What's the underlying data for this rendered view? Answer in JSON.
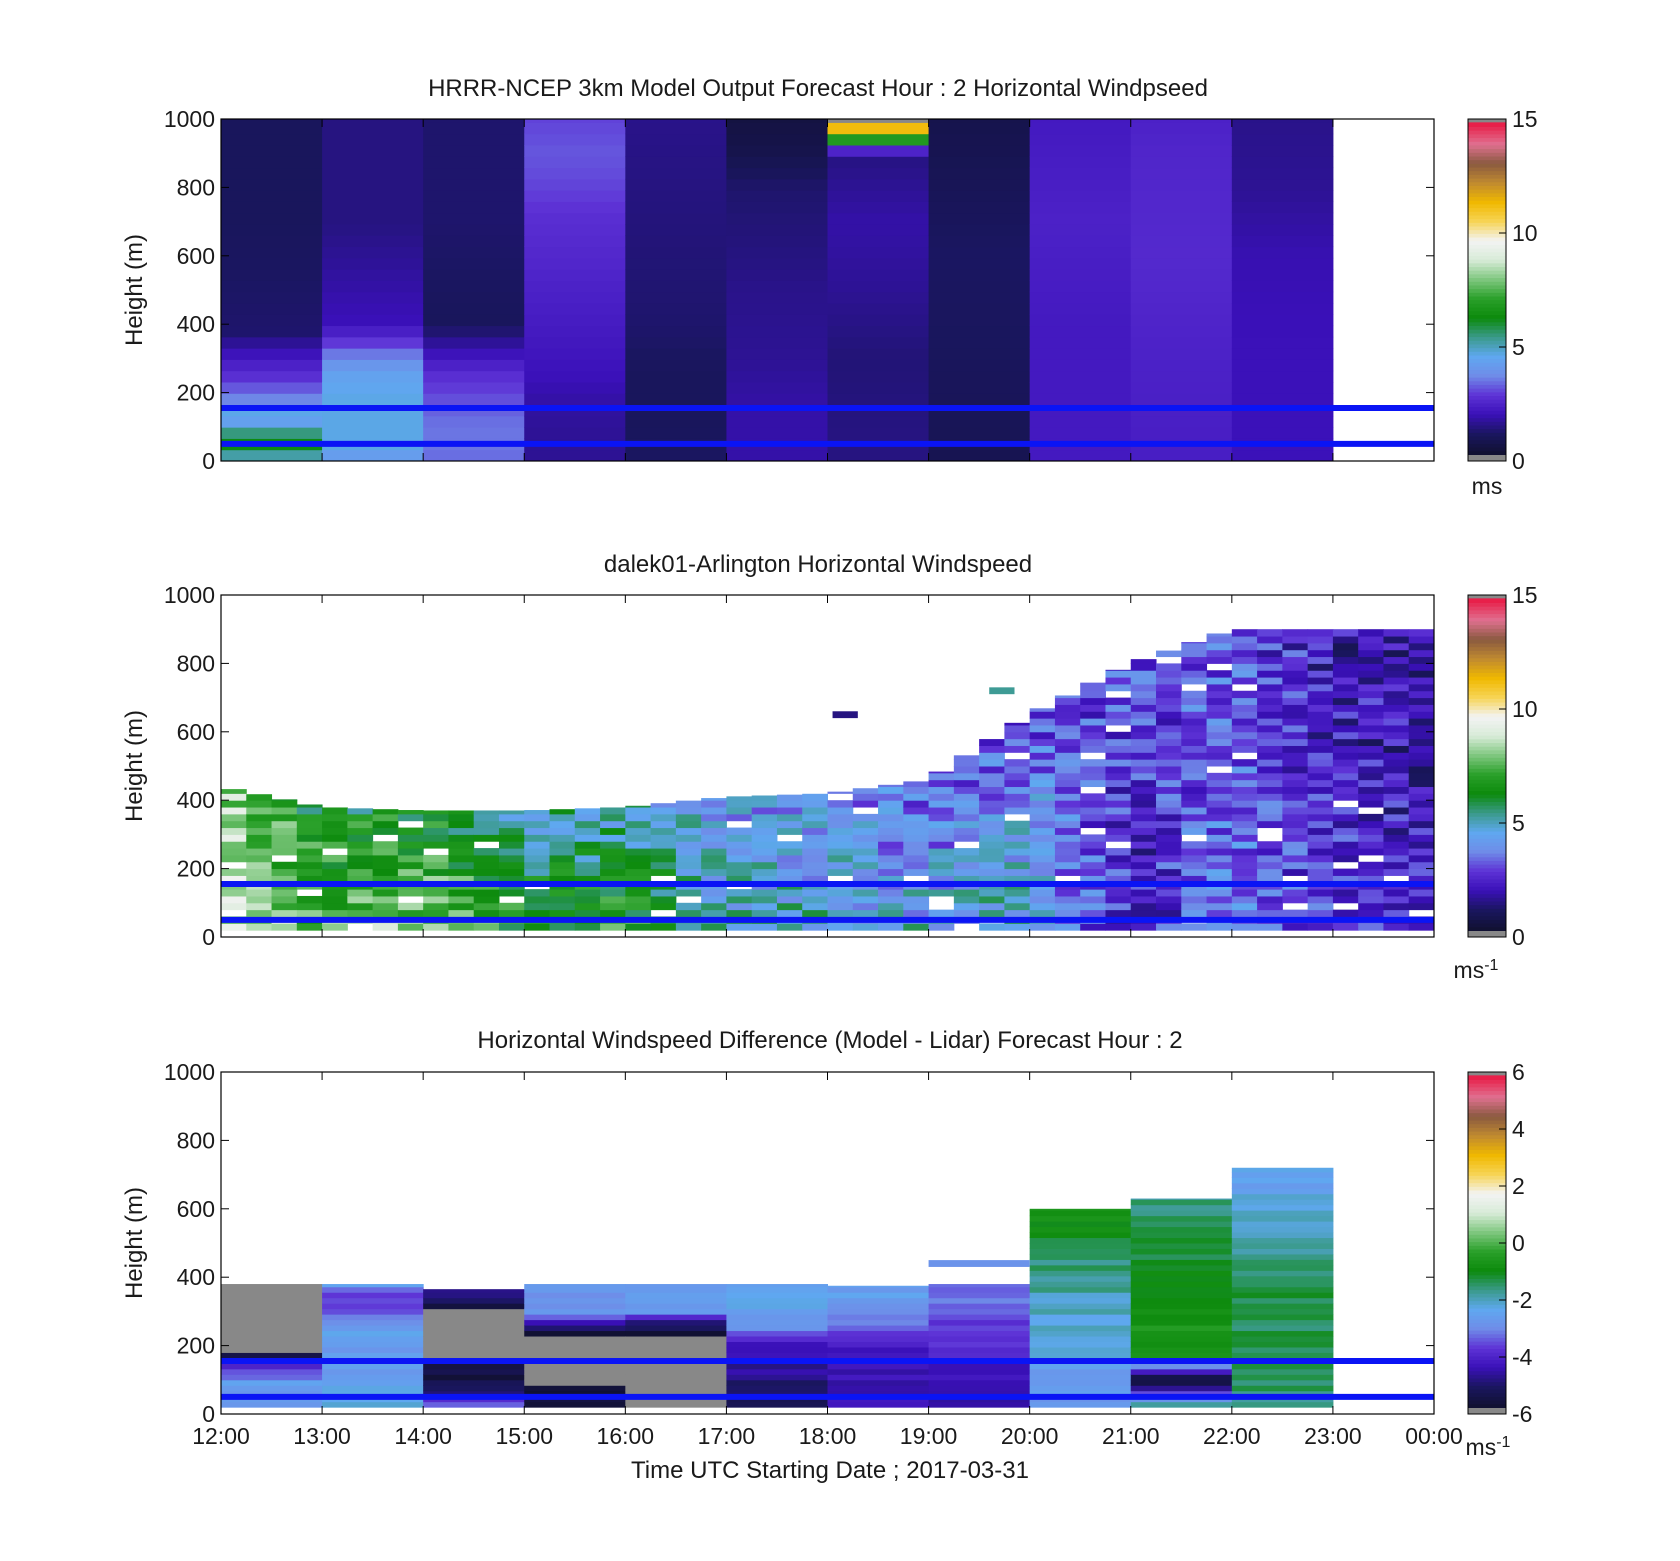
{
  "figure": {
    "xlabel": "Time UTC  Starting Date ; 2017-03-31",
    "x_tick_labels": [
      "12:00",
      "13:00",
      "14:00",
      "15:00",
      "16:00",
      "17:00",
      "18:00",
      "19:00",
      "20:00",
      "21:00",
      "22:00",
      "23:00",
      "00:00"
    ]
  },
  "colormap": {
    "stops": [
      "#111133",
      "#1a1660",
      "#3a10b8",
      "#5e33d6",
      "#6f8ce8",
      "#5fa8f0",
      "#3a9a8a",
      "#0c8a0c",
      "#2aa02a",
      "#7fc77f",
      "#d8ebd8",
      "#f3f3f3",
      "#f7d455",
      "#f0b800",
      "#c08a30",
      "#8a5a40",
      "#e07090",
      "#e8204a"
    ],
    "series_line_color": "#0a14f5",
    "missing_color": "#888888"
  },
  "chart_data": [
    {
      "type": "heatmap",
      "title": "HRRR-NCEP 3km Model Output   Forecast Hour : 2 Horizontal Windpseed",
      "ylabel": "Height (m)",
      "xlim": [
        12,
        24
      ],
      "ylim": [
        0,
        1000
      ],
      "y_ticks": [
        "0",
        "200",
        "400",
        "600",
        "800",
        "1000"
      ],
      "colorbar": {
        "vmin": 0,
        "vmax": 15,
        "ticks": [
          "0",
          "5",
          "10",
          "15"
        ],
        "unit": "ms"
      },
      "horizontal_lines_m": [
        50,
        155
      ],
      "cells": [
        {
          "t": 12,
          "prof": [
            [
              0,
              4.5
            ],
            [
              30,
              5.5
            ],
            [
              60,
              6.5
            ],
            [
              90,
              5
            ],
            [
              120,
              4
            ],
            [
              150,
              4.5
            ],
            [
              180,
              3.5
            ],
            [
              250,
              2.5
            ],
            [
              300,
              2
            ],
            [
              380,
              1
            ],
            [
              700,
              0.8
            ]
          ]
        },
        {
          "t": 13,
          "prof": [
            [
              0,
              3.5
            ],
            [
              30,
              4.5
            ],
            [
              100,
              4.5
            ],
            [
              140,
              4.5
            ],
            [
              180,
              4.5
            ],
            [
              250,
              4.2
            ],
            [
              300,
              3.6
            ],
            [
              340,
              2.8
            ],
            [
              400,
              1.8
            ],
            [
              700,
              1.2
            ]
          ]
        },
        {
          "t": 14,
          "prof": [
            [
              0,
              3.2
            ],
            [
              50,
              3.3
            ],
            [
              100,
              3.3
            ],
            [
              150,
              3.1
            ],
            [
              200,
              2.8
            ],
            [
              250,
              2.5
            ],
            [
              300,
              2
            ],
            [
              400,
              0.8
            ],
            [
              700,
              1
            ]
          ]
        },
        {
          "t": 15,
          "prof": [
            [
              0,
              1.4
            ],
            [
              60,
              1.4
            ],
            [
              150,
              1.5
            ],
            [
              250,
              1.8
            ],
            [
              500,
              2.2
            ],
            [
              700,
              2.5
            ],
            [
              800,
              2.8
            ],
            [
              900,
              3
            ],
            [
              1000,
              2.8
            ]
          ]
        },
        {
          "t": 16,
          "prof": [
            [
              0,
              0.9
            ],
            [
              100,
              0.8
            ],
            [
              250,
              0.8
            ],
            [
              400,
              1
            ],
            [
              600,
              1.1
            ],
            [
              1000,
              1.3
            ]
          ]
        },
        {
          "t": 17,
          "prof": [
            [
              0,
              1.6
            ],
            [
              150,
              1.6
            ],
            [
              300,
              1.4
            ],
            [
              500,
              1.3
            ],
            [
              800,
              1
            ],
            [
              900,
              0.5
            ],
            [
              1000,
              0.3
            ]
          ]
        },
        {
          "t": 18,
          "prof": [
            [
              0,
              1.2
            ],
            [
              100,
              1.2
            ],
            [
              300,
              1.1
            ],
            [
              500,
              1.4
            ],
            [
              700,
              1.6
            ],
            [
              900,
              1.2
            ],
            [
              1000,
              15
            ]
          ]
        },
        {
          "t": 19,
          "prof": [
            [
              0,
              0.6
            ],
            [
              100,
              0.7
            ],
            [
              300,
              0.8
            ],
            [
              600,
              0.9
            ],
            [
              800,
              0.7
            ],
            [
              1000,
              0.5
            ]
          ]
        },
        {
          "t": 20,
          "prof": [
            [
              0,
              2
            ],
            [
              200,
              2
            ],
            [
              400,
              2
            ],
            [
              700,
              2.2
            ],
            [
              1000,
              2
            ]
          ]
        },
        {
          "t": 21,
          "prof": [
            [
              0,
              2.1
            ],
            [
              300,
              2.2
            ],
            [
              600,
              2.4
            ],
            [
              900,
              2.3
            ],
            [
              1000,
              2.2
            ]
          ]
        },
        {
          "t": 22,
          "prof": [
            [
              0,
              1.8
            ],
            [
              300,
              1.8
            ],
            [
              600,
              1.7
            ],
            [
              800,
              1.4
            ],
            [
              1000,
              1.3
            ]
          ]
        }
      ]
    },
    {
      "type": "heatmap",
      "title": "dalek01-Arlington  Horizontal Windspeed",
      "ylabel": "Height (m)",
      "xlim": [
        12,
        24
      ],
      "ylim": [
        0,
        1000
      ],
      "y_ticks": [
        "0",
        "200",
        "400",
        "600",
        "800",
        "1000"
      ],
      "colorbar": {
        "vmin": 0,
        "vmax": 15,
        "ticks": [
          "0",
          "5",
          "10",
          "15"
        ],
        "unit": "ms-1"
      },
      "horizontal_lines_m": [
        50,
        155
      ],
      "column_width_h": 0.25,
      "top_height_m": [
        [
          12,
          440
        ],
        [
          13,
          380
        ],
        [
          14,
          370
        ],
        [
          15,
          370
        ],
        [
          16,
          380
        ],
        [
          17,
          410
        ],
        [
          18,
          420
        ],
        [
          19,
          460
        ],
        [
          20,
          650
        ],
        [
          21,
          800
        ],
        [
          22,
          900
        ],
        [
          23.9,
          900
        ]
      ],
      "speed_profile_keypoints": [
        [
          12,
          8.8,
          8.5
        ],
        [
          13,
          7.5,
          6.0
        ],
        [
          14,
          8.5,
          6.2
        ],
        [
          15,
          6.6,
          5.0
        ],
        [
          16,
          7.0,
          4.8
        ],
        [
          17,
          5.0,
          4.0
        ],
        [
          18,
          4.8,
          3.8
        ],
        [
          19,
          4.5,
          3.0
        ],
        [
          20,
          5.0,
          2.8
        ],
        [
          21,
          1.8,
          2.8
        ],
        [
          22,
          3.5,
          3.0
        ],
        [
          23,
          2.5,
          1.8
        ],
        [
          24,
          2.0,
          1.6
        ]
      ],
      "isolated_segments": [
        {
          "t0": 18.05,
          "t1": 18.3,
          "h": 650,
          "speed": 1.2
        },
        {
          "t0": 19.6,
          "t1": 19.85,
          "h": 720,
          "speed": 5.2
        }
      ]
    },
    {
      "type": "heatmap",
      "title": "Horizontal Windspeed Difference (Model - Lidar) Forecast Hour : 2",
      "ylabel": "Height (m)",
      "xlim": [
        12,
        24
      ],
      "ylim": [
        0,
        1000
      ],
      "y_ticks": [
        "0",
        "200",
        "400",
        "600",
        "800",
        "1000"
      ],
      "colorbar": {
        "vmin": -6,
        "vmax": 6,
        "ticks": [
          "-6",
          "-4",
          "-2",
          "0",
          "2",
          "4",
          "6"
        ],
        "unit": "ms-1"
      },
      "horizontal_lines_m": [
        50,
        155
      ],
      "cells": [
        {
          "t": 12,
          "top": 380,
          "prof": [
            [
              0,
              -2.6
            ],
            [
              40,
              -2.6
            ],
            [
              90,
              -2.8
            ],
            [
              130,
              -3.8
            ],
            [
              160,
              -5
            ],
            [
              190,
              -6.3
            ],
            [
              380,
              -6.3
            ]
          ]
        },
        {
          "t": 13,
          "top": 380,
          "prof": [
            [
              0,
              -2.6
            ],
            [
              60,
              -2.5
            ],
            [
              120,
              -2.9
            ],
            [
              180,
              -2.9
            ],
            [
              240,
              -2.7
            ],
            [
              290,
              -3.3
            ],
            [
              340,
              -4
            ],
            [
              380,
              -2.8
            ]
          ]
        },
        {
          "t": 14,
          "top": 365,
          "prof": [
            [
              0,
              -2.7
            ],
            [
              40,
              -4.2
            ],
            [
              80,
              -5.5
            ],
            [
              130,
              -5.8
            ],
            [
              160,
              -6.3
            ],
            [
              300,
              -6.3
            ],
            [
              340,
              -5
            ],
            [
              365,
              -4.8
            ]
          ]
        },
        {
          "t": 15,
          "top": 380,
          "prof": [
            [
              0,
              -5.8
            ],
            [
              60,
              -6
            ],
            [
              100,
              -6.3
            ],
            [
              230,
              -6.3
            ],
            [
              260,
              -4.8
            ],
            [
              300,
              -2.9
            ],
            [
              380,
              -2.8
            ]
          ]
        },
        {
          "t": 16,
          "top": 380,
          "prof": [
            [
              0,
              -6.3
            ],
            [
              230,
              -6.3
            ],
            [
              260,
              -5.3
            ],
            [
              300,
              -3
            ],
            [
              380,
              -2.8
            ]
          ]
        },
        {
          "t": 17,
          "top": 380,
          "prof": [
            [
              0,
              -5.5
            ],
            [
              100,
              -5
            ],
            [
              200,
              -4.5
            ],
            [
              250,
              -3.2
            ],
            [
              300,
              -2.5
            ],
            [
              380,
              -2.4
            ]
          ]
        },
        {
          "t": 18,
          "top": 375,
          "prof": [
            [
              0,
              -4.6
            ],
            [
              150,
              -4.6
            ],
            [
              200,
              -4.3
            ],
            [
              250,
              -3.5
            ],
            [
              300,
              -3
            ],
            [
              375,
              -2.6
            ]
          ]
        },
        {
          "t": 19,
          "top": 380,
          "prof": [
            [
              0,
              -4.6
            ],
            [
              150,
              -4.5
            ],
            [
              200,
              -4
            ],
            [
              280,
              -3.8
            ],
            [
              340,
              -3.3
            ],
            [
              380,
              -3.5
            ]
          ]
        },
        {
          "t": 20,
          "top": 600,
          "prof": [
            [
              0,
              -2.7
            ],
            [
              150,
              -2.6
            ],
            [
              300,
              -2.2
            ],
            [
              450,
              -1.6
            ],
            [
              550,
              -1
            ],
            [
              600,
              -0.5
            ]
          ]
        },
        {
          "t": 21,
          "top": 630,
          "prof": [
            [
              0,
              -0.5
            ],
            [
              100,
              -6.3
            ],
            [
              170,
              -0.6
            ],
            [
              300,
              -0.8
            ],
            [
              450,
              -1.2
            ],
            [
              600,
              -1.6
            ],
            [
              630,
              -1.8
            ]
          ]
        },
        {
          "t": 22,
          "top": 720,
          "prof": [
            [
              0,
              -1.7
            ],
            [
              200,
              -1.5
            ],
            [
              350,
              -1.4
            ],
            [
              500,
              -2
            ],
            [
              600,
              -2.4
            ],
            [
              720,
              -2.6
            ]
          ]
        }
      ],
      "isolated_segments": [
        {
          "t0": 19.0,
          "t1": 20.0,
          "h": 440,
          "speed": -3.0
        }
      ]
    }
  ]
}
